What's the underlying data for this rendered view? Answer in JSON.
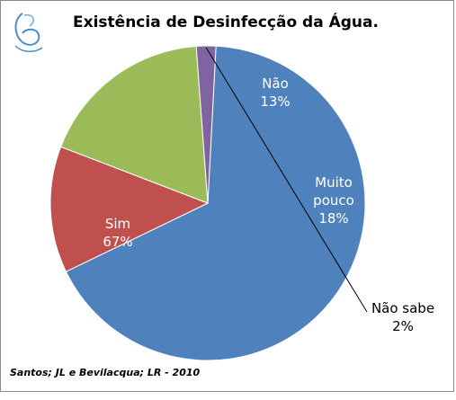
{
  "chart_data": {
    "type": "pie",
    "title": "Existência de Desinfecção da Água.",
    "slices": [
      {
        "label": "Sim",
        "value": 67,
        "value_label": "67%",
        "color": "#4F81BD"
      },
      {
        "label": "Não",
        "value": 13,
        "value_label": "13%",
        "color": "#C0504D"
      },
      {
        "label": "Muito pouco",
        "label_lines": [
          "Muito",
          "pouco"
        ],
        "value": 18,
        "value_label": "18%",
        "color": "#9BBB59"
      },
      {
        "label": "Não sabe",
        "value": 2,
        "value_label": "2%",
        "color": "#8064A2"
      }
    ],
    "legend": "none",
    "source": "Santos; JL e Bevilacqua; LR - 2010"
  },
  "logo": {
    "icon": "stylized-b-logo"
  }
}
